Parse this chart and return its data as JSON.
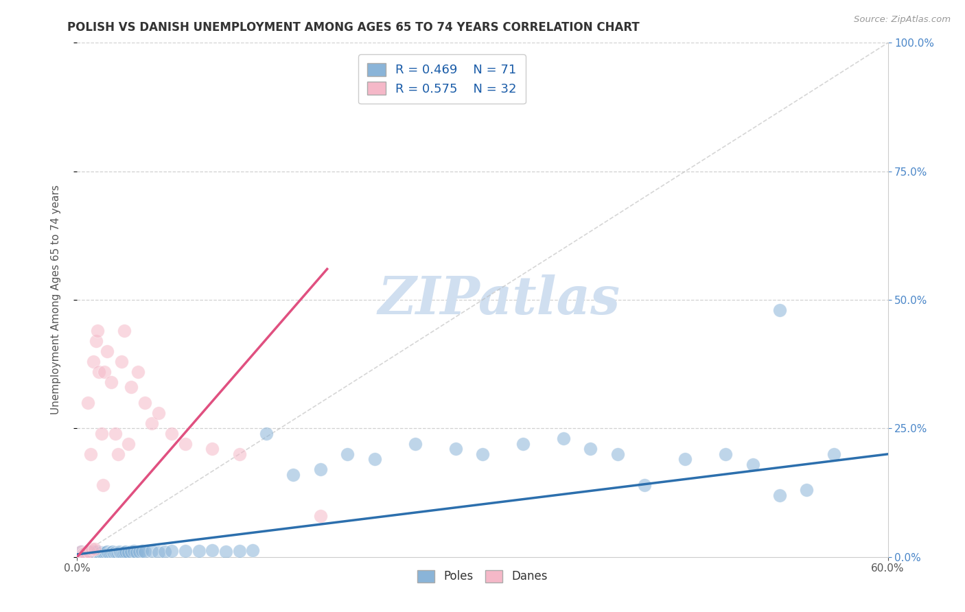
{
  "title": "POLISH VS DANISH UNEMPLOYMENT AMONG AGES 65 TO 74 YEARS CORRELATION CHART",
  "source": "Source: ZipAtlas.com",
  "ylabel_label": "Unemployment Among Ages 65 to 74 years",
  "xlim": [
    0.0,
    0.6
  ],
  "ylim": [
    0.0,
    1.0
  ],
  "legend1_R": "0.469",
  "legend1_N": "71",
  "legend2_R": "0.575",
  "legend2_N": "32",
  "blue_scatter_color": "#8ab4d8",
  "pink_scatter_color": "#f5b8c8",
  "blue_line_color": "#2c6fad",
  "pink_line_color": "#e05080",
  "right_tick_color": "#4a86c8",
  "watermark_color": "#d0dff0",
  "poles_label": "Poles",
  "danes_label": "Danes",
  "poles_x": [
    0.003,
    0.004,
    0.005,
    0.006,
    0.007,
    0.008,
    0.009,
    0.01,
    0.011,
    0.012,
    0.013,
    0.014,
    0.015,
    0.016,
    0.017,
    0.018,
    0.019,
    0.02,
    0.021,
    0.022,
    0.023,
    0.024,
    0.025,
    0.026,
    0.027,
    0.028,
    0.029,
    0.03,
    0.031,
    0.032,
    0.033,
    0.034,
    0.035,
    0.036,
    0.038,
    0.04,
    0.042,
    0.044,
    0.046,
    0.048,
    0.05,
    0.055,
    0.06,
    0.065,
    0.07,
    0.08,
    0.09,
    0.1,
    0.11,
    0.12,
    0.13,
    0.14,
    0.16,
    0.18,
    0.2,
    0.22,
    0.25,
    0.28,
    0.3,
    0.33,
    0.36,
    0.38,
    0.4,
    0.42,
    0.45,
    0.48,
    0.5,
    0.52,
    0.54,
    0.56,
    0.52
  ],
  "poles_y": [
    0.01,
    0.005,
    0.008,
    0.007,
    0.01,
    0.006,
    0.009,
    0.008,
    0.01,
    0.007,
    0.009,
    0.008,
    0.01,
    0.007,
    0.008,
    0.009,
    0.007,
    0.008,
    0.009,
    0.01,
    0.008,
    0.007,
    0.009,
    0.01,
    0.008,
    0.009,
    0.007,
    0.008,
    0.01,
    0.009,
    0.008,
    0.007,
    0.009,
    0.01,
    0.009,
    0.01,
    0.011,
    0.009,
    0.01,
    0.011,
    0.01,
    0.011,
    0.009,
    0.01,
    0.012,
    0.011,
    0.012,
    0.013,
    0.01,
    0.012,
    0.013,
    0.24,
    0.16,
    0.17,
    0.2,
    0.19,
    0.22,
    0.21,
    0.2,
    0.22,
    0.23,
    0.21,
    0.2,
    0.14,
    0.19,
    0.2,
    0.18,
    0.12,
    0.13,
    0.2,
    0.48
  ],
  "danes_x": [
    0.003,
    0.005,
    0.006,
    0.008,
    0.009,
    0.01,
    0.011,
    0.012,
    0.013,
    0.014,
    0.015,
    0.016,
    0.018,
    0.019,
    0.02,
    0.022,
    0.025,
    0.028,
    0.03,
    0.033,
    0.035,
    0.038,
    0.04,
    0.045,
    0.05,
    0.055,
    0.06,
    0.07,
    0.08,
    0.1,
    0.12,
    0.18
  ],
  "danes_y": [
    0.01,
    0.007,
    0.008,
    0.3,
    0.01,
    0.2,
    0.015,
    0.38,
    0.015,
    0.42,
    0.44,
    0.36,
    0.24,
    0.14,
    0.36,
    0.4,
    0.34,
    0.24,
    0.2,
    0.38,
    0.44,
    0.22,
    0.33,
    0.36,
    0.3,
    0.26,
    0.28,
    0.24,
    0.22,
    0.21,
    0.2,
    0.08
  ],
  "blue_trendline_x": [
    0.0,
    0.6
  ],
  "blue_trendline_y": [
    0.005,
    0.2
  ],
  "pink_trendline_x": [
    0.0,
    0.185
  ],
  "pink_trendline_y": [
    0.0,
    0.56
  ]
}
